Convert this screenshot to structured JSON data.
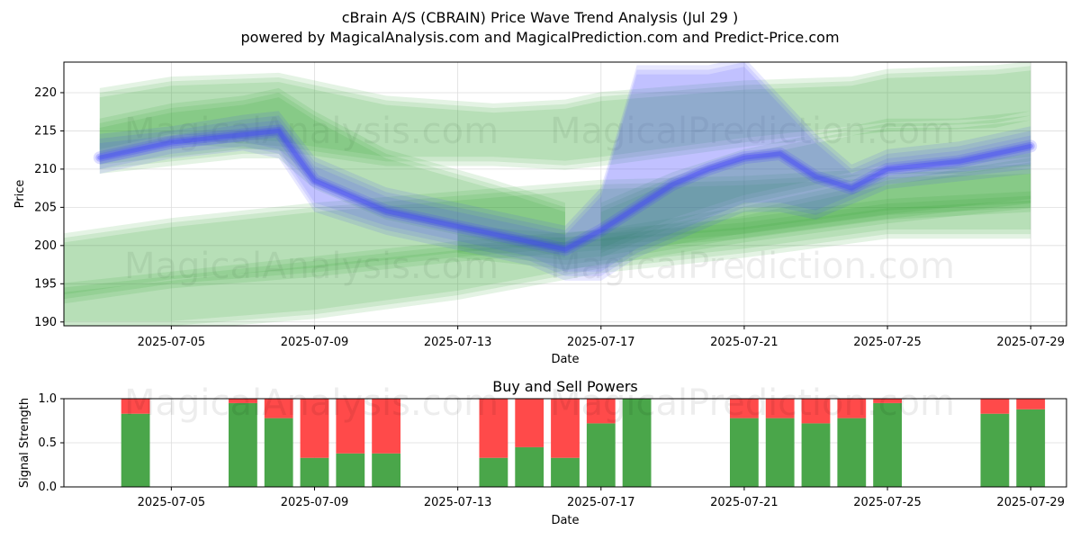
{
  "header": {
    "title": "cBrain A/S (CBRAIN) Price Wave Trend Analysis (Jul 29 )",
    "subtitle": "powered by MagicalAnalysis.com and MagicalPrediction.com and Predict-Price.com"
  },
  "watermarks": [
    "MagicalAnalysis.com",
    "MagicalPrediction.com"
  ],
  "colors": {
    "green": "#2ca02c",
    "blue": "#4040ff",
    "buy": "#4aa64a",
    "sell": "#ff4a4a"
  },
  "chart_data": [
    {
      "type": "area",
      "title": "",
      "xlabel": "Date",
      "ylabel": "Price",
      "xlim": [
        "2025-07-02",
        "2025-07-30"
      ],
      "ylim": [
        189.5,
        224
      ],
      "yticks": [
        190,
        195,
        200,
        205,
        210,
        215,
        220
      ],
      "xticks": [
        "2025-07-05",
        "2025-07-09",
        "2025-07-13",
        "2025-07-17",
        "2025-07-21",
        "2025-07-25",
        "2025-07-29"
      ],
      "grid": true,
      "series": [
        {
          "name": "green-upper-band",
          "color": "green",
          "x": [
            "2025-07-03",
            "2025-07-05",
            "2025-07-08",
            "2025-07-11",
            "2025-07-14",
            "2025-07-16",
            "2025-07-17",
            "2025-07-21",
            "2025-07-24",
            "2025-07-25",
            "2025-07-28",
            "2025-07-29"
          ],
          "upper": [
            220,
            221.5,
            222,
            219,
            218,
            218.5,
            219.5,
            221,
            221.5,
            222.5,
            223,
            223.5
          ],
          "lower": [
            212,
            214,
            213,
            211,
            211,
            210.5,
            211,
            213.5,
            215,
            215.5,
            216,
            217
          ]
        },
        {
          "name": "green-upper-band-2",
          "color": "green",
          "x": [
            "2025-07-03",
            "2025-07-05",
            "2025-07-07",
            "2025-07-08",
            "2025-07-09",
            "2025-07-11",
            "2025-07-14",
            "2025-07-16"
          ],
          "upper": [
            216,
            218,
            219,
            220,
            217,
            212,
            208,
            205
          ],
          "lower": [
            210,
            211,
            212,
            212,
            208,
            204,
            201,
            199
          ]
        },
        {
          "name": "green-mid-band",
          "color": "green",
          "x": [
            "2025-07-02",
            "2025-07-05",
            "2025-07-09",
            "2025-07-13",
            "2025-07-17",
            "2025-07-21",
            "2025-07-25",
            "2025-07-29"
          ],
          "upper": [
            201,
            203,
            205,
            206.5,
            208,
            208.5,
            209.5,
            210
          ],
          "lower": [
            189.5,
            189.5,
            191,
            193.5,
            197,
            199,
            201.5,
            201.5
          ]
        },
        {
          "name": "green-low-band",
          "color": "green",
          "x": [
            "2025-07-02",
            "2025-07-05",
            "2025-07-09",
            "2025-07-13",
            "2025-07-17",
            "2025-07-21",
            "2025-07-25",
            "2025-07-29"
          ],
          "upper": [
            194.5,
            196,
            198,
            200,
            201.5,
            203,
            205.5,
            206.5
          ],
          "lower": [
            193,
            195,
            196.5,
            198.5,
            200,
            201.5,
            204,
            205
          ]
        },
        {
          "name": "green-rising-band",
          "color": "green",
          "x": [
            "2025-07-13",
            "2025-07-16",
            "2025-07-17",
            "2025-07-21",
            "2025-07-25",
            "2025-07-29"
          ],
          "upper": [
            202,
            201,
            201.5,
            204.5,
            208.5,
            211.5
          ],
          "lower": [
            199,
            197.5,
            198,
            201,
            203.5,
            205.5
          ]
        },
        {
          "name": "green-right-band",
          "color": "green",
          "x": [
            "2025-07-17",
            "2025-07-19",
            "2025-07-21",
            "2025-07-23",
            "2025-07-25",
            "2025-07-27",
            "2025-07-29"
          ],
          "upper": [
            205,
            209,
            212,
            214,
            216,
            216,
            217
          ],
          "lower": [
            199,
            203,
            206,
            208,
            210,
            210,
            211
          ]
        },
        {
          "name": "blue-wave-band",
          "color": "blue",
          "x": [
            "2025-07-03",
            "2025-07-05",
            "2025-07-07",
            "2025-07-08",
            "2025-07-09",
            "2025-07-11",
            "2025-07-13",
            "2025-07-15",
            "2025-07-16",
            "2025-07-17",
            "2025-07-18",
            "2025-07-20",
            "2025-07-21",
            "2025-07-22",
            "2025-07-23",
            "2025-07-24",
            "2025-07-25",
            "2025-07-27",
            "2025-07-29"
          ],
          "upper": [
            214,
            215,
            216.5,
            217,
            211,
            207,
            205,
            203,
            202,
            207,
            223,
            223,
            224,
            219,
            214,
            210,
            212,
            213,
            215
          ],
          "lower": [
            210,
            212,
            213,
            212,
            205,
            202,
            200,
            198,
            196,
            196,
            199,
            203,
            205,
            205,
            204,
            206,
            208,
            209,
            210
          ]
        }
      ],
      "lines": [
        {
          "name": "blue-price-line",
          "color": "blue",
          "x": [
            "2025-07-03",
            "2025-07-05",
            "2025-07-07",
            "2025-07-08",
            "2025-07-09",
            "2025-07-11",
            "2025-07-13",
            "2025-07-15",
            "2025-07-16",
            "2025-07-17",
            "2025-07-18",
            "2025-07-19",
            "2025-07-20",
            "2025-07-21",
            "2025-07-22",
            "2025-07-23",
            "2025-07-24",
            "2025-07-25",
            "2025-07-27",
            "2025-07-29"
          ],
          "values": [
            211.5,
            213.5,
            214.5,
            215,
            208.5,
            204.5,
            202.5,
            200.5,
            199.5,
            202,
            205,
            208,
            210,
            211.5,
            212,
            209,
            207.5,
            210,
            211,
            213
          ]
        }
      ]
    },
    {
      "type": "bar",
      "title": "Buy and Sell Powers",
      "xlabel": "Date",
      "ylabel": "Signal Strength",
      "ylim": [
        0,
        1
      ],
      "yticks": [
        "0.0",
        "0.5",
        "1.0"
      ],
      "xlim": [
        "2025-07-02",
        "2025-07-30"
      ],
      "xticks": [
        "2025-07-05",
        "2025-07-09",
        "2025-07-13",
        "2025-07-17",
        "2025-07-21",
        "2025-07-25",
        "2025-07-29"
      ],
      "categories": [
        "2025-07-04",
        "2025-07-07",
        "2025-07-08",
        "2025-07-09",
        "2025-07-10",
        "2025-07-11",
        "2025-07-14",
        "2025-07-15",
        "2025-07-16",
        "2025-07-17",
        "2025-07-18",
        "2025-07-21",
        "2025-07-22",
        "2025-07-23",
        "2025-07-24",
        "2025-07-25",
        "2025-07-28",
        "2025-07-29"
      ],
      "series": [
        {
          "name": "Buy",
          "color": "buy",
          "values": [
            0.83,
            0.95,
            0.78,
            0.33,
            0.38,
            0.38,
            0.33,
            0.45,
            0.33,
            0.72,
            1.0,
            0.78,
            0.78,
            0.72,
            0.78,
            0.95,
            0.83,
            0.88
          ]
        },
        {
          "name": "Sell",
          "color": "sell",
          "values": [
            0.17,
            0.05,
            0.22,
            0.67,
            0.62,
            0.62,
            0.67,
            0.55,
            0.67,
            0.28,
            0.0,
            0.22,
            0.22,
            0.28,
            0.22,
            0.05,
            0.17,
            0.12
          ]
        }
      ]
    }
  ]
}
